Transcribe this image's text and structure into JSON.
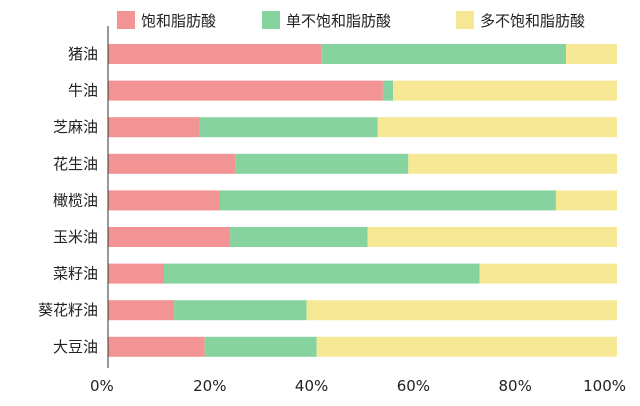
{
  "chart_data": {
    "type": "bar",
    "orientation": "horizontal",
    "stacked": true,
    "categories": [
      "猪油",
      "牛油",
      "芝麻油",
      "花生油",
      "橄榄油",
      "玉米油",
      "菜籽油",
      "葵花籽油",
      "大豆油"
    ],
    "series": [
      {
        "name": "饱和脂肪酸",
        "color": "#f29494",
        "values": [
          42,
          54,
          18,
          25,
          22,
          24,
          11,
          13,
          19
        ]
      },
      {
        "name": "单不饱和脂肪酸",
        "color": "#86d3a0",
        "values": [
          48,
          2,
          35,
          34,
          66,
          27,
          62,
          26,
          22
        ]
      },
      {
        "name": "多不饱和脂肪酸",
        "color": "#f7e896",
        "values": [
          10,
          44,
          47,
          41,
          12,
          49,
          27,
          61,
          59
        ]
      }
    ],
    "xlim": [
      0,
      100
    ],
    "xticks": [
      "0%",
      "20%",
      "40%",
      "60%",
      "80%",
      "100%"
    ],
    "legend_position": "top",
    "grid": false,
    "xlabel": "",
    "ylabel": ""
  }
}
